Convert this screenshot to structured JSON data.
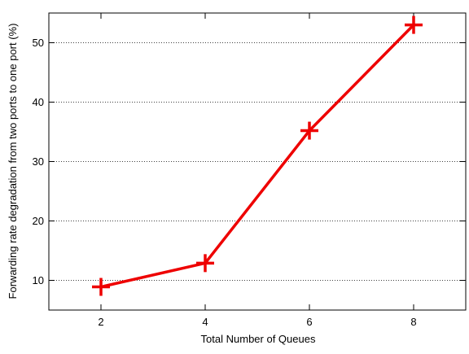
{
  "chart_data": {
    "type": "line",
    "title": "",
    "xlabel": "Total Number of Queues",
    "ylabel": "Forwarding rate degradation from two ports to one port (%)",
    "xlim": [
      1,
      9
    ],
    "ylim": [
      5,
      55
    ],
    "x_ticks": [
      2,
      4,
      6,
      8
    ],
    "y_ticks": [
      10,
      20,
      30,
      40,
      50
    ],
    "grid": "horizontal dotted",
    "legend": "none",
    "marker": "plus",
    "series": [
      {
        "color": "#ee0000",
        "x": [
          2,
          4,
          6,
          8
        ],
        "y": [
          8.9,
          12.9,
          35.2,
          53.0
        ]
      }
    ]
  }
}
